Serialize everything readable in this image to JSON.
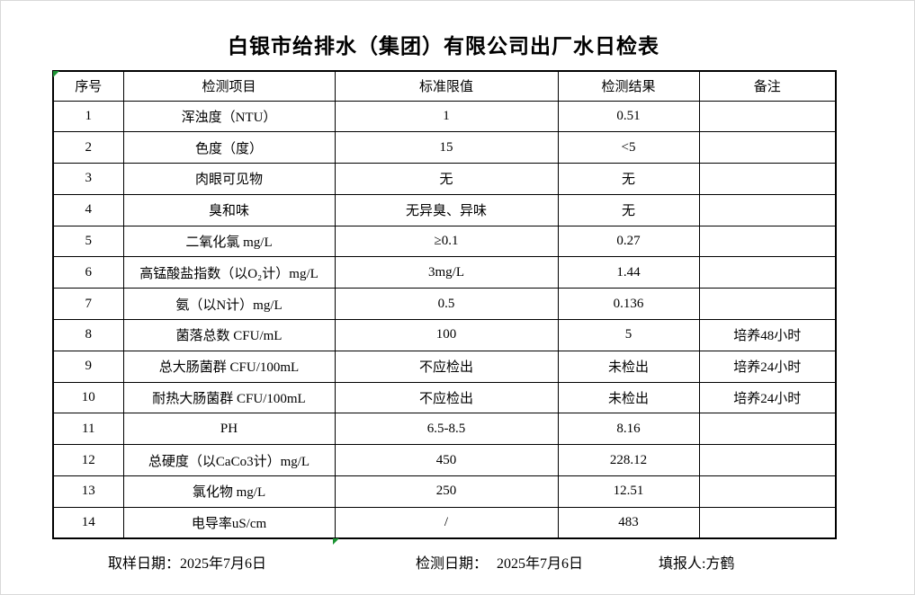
{
  "title": "白银市给排水（集团）有限公司出厂水日检表",
  "table": {
    "headers": [
      "序号",
      "检测项目",
      "标准限值",
      "检测结果",
      "备注"
    ],
    "rows": [
      {
        "no": "1",
        "item": "浑浊度（NTU）",
        "limit": "1",
        "result": "0.51",
        "remark": ""
      },
      {
        "no": "2",
        "item": "色度（度）",
        "limit": "15",
        "result": "<5",
        "remark": ""
      },
      {
        "no": "3",
        "item": "肉眼可见物",
        "limit": "无",
        "result": "无",
        "remark": ""
      },
      {
        "no": "4",
        "item": "臭和味",
        "limit": "无异臭、异味",
        "result": "无",
        "remark": ""
      },
      {
        "no": "5",
        "item": "二氧化氯 mg/L",
        "limit": "≥0.1",
        "result": "0.27",
        "remark": ""
      },
      {
        "no": "6",
        "item": "高锰酸盐指数（以O₂计）mg/L",
        "limit": "3mg/L",
        "result": "1.44",
        "remark": ""
      },
      {
        "no": "7",
        "item": "氨（以N计）mg/L",
        "limit": "0.5",
        "result": "0.136",
        "remark": ""
      },
      {
        "no": "8",
        "item": "菌落总数 CFU/mL",
        "limit": "100",
        "result": "5",
        "remark": "培养48小时"
      },
      {
        "no": "9",
        "item": "总大肠菌群 CFU/100mL",
        "limit": "不应检出",
        "result": "未检出",
        "remark": "培养24小时"
      },
      {
        "no": "10",
        "item": "耐热大肠菌群 CFU/100mL",
        "limit": "不应检出",
        "result": "未检出",
        "remark": "培养24小时"
      },
      {
        "no": "11",
        "item": "PH",
        "limit": "6.5-8.5",
        "result": "8.16",
        "remark": ""
      },
      {
        "no": "12",
        "item": "总硬度（以CaCo3计）mg/L",
        "limit": "450",
        "result": "228.12",
        "remark": ""
      },
      {
        "no": "13",
        "item": "氯化物 mg/L",
        "limit": "250",
        "result": "12.51",
        "remark": ""
      },
      {
        "no": "14",
        "item": "电导率uS/cm",
        "limit": "/",
        "result": "483",
        "remark": ""
      }
    ]
  },
  "footer": {
    "sample_date_label": "取样日期：",
    "sample_date": "2025年7月6日",
    "test_date_label": "检测日期：",
    "test_date": "2025年7月6日",
    "reporter_label": "填报人:",
    "reporter": "方鹤"
  },
  "colors": {
    "indicator_green": "#1b9433",
    "border_black": "#000000",
    "text_black": "#000000"
  }
}
